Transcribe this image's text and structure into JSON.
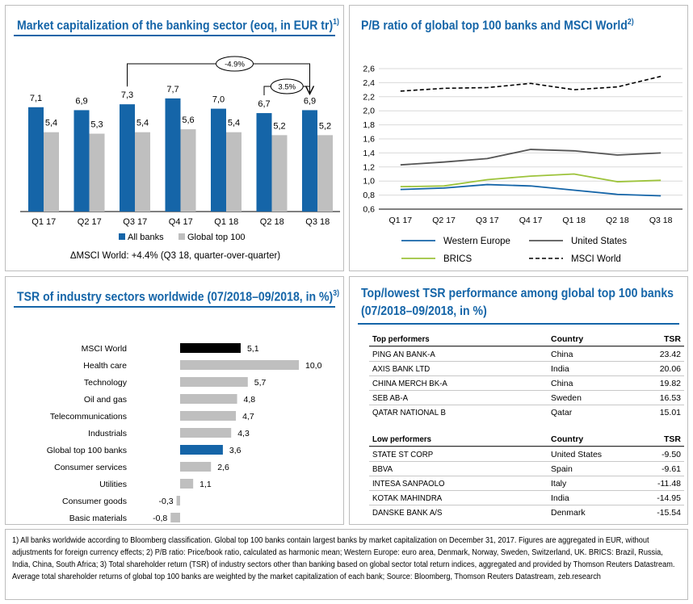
{
  "panel1": {
    "title": "Market capitalization of the banking sector (eoq, in EUR tr)",
    "title_sup": "1)",
    "note": "ΔMSCI World: +4.4% (Q3 18, quarter-over-quarter)",
    "annotation_long": "-4.9%",
    "annotation_short": "3.5%"
  },
  "panel2": {
    "title": "P/B ratio of global top 100 banks and MSCI World",
    "title_sup": "2)"
  },
  "panel3": {
    "title": "TSR of industry sectors worldwide (07/2018–09/2018, in %)",
    "title_sup": "3)"
  },
  "panel4": {
    "title_line1": "Top/lowest TSR performance among global top 100 banks",
    "title_line2": "(07/2018–09/2018, in %)",
    "top_header": [
      "Top performers",
      "Country",
      "TSR"
    ],
    "top_rows": [
      [
        "PING AN BANK-A",
        "China",
        "23.42"
      ],
      [
        "AXIS BANK LTD",
        "India",
        "20.06"
      ],
      [
        "CHINA MERCH BK-A",
        "China",
        "19.82"
      ],
      [
        "SEB AB-A",
        "Sweden",
        "16.53"
      ],
      [
        "QATAR NATIONAL B",
        "Qatar",
        "15.01"
      ]
    ],
    "low_header": [
      "Low performers",
      "Country",
      "TSR"
    ],
    "low_rows": [
      [
        "STATE ST CORP",
        "United States",
        "-9.50"
      ],
      [
        "BBVA",
        "Spain",
        "-9.61"
      ],
      [
        "INTESA SANPAOLO",
        "Italy",
        "-11.48"
      ],
      [
        "KOTAK MAHINDRA",
        "India",
        "-14.95"
      ],
      [
        "DANSKE BANK A/S",
        "Denmark",
        "-15.54"
      ]
    ]
  },
  "footnote": "1) All banks worldwide according to Bloomberg classification. Global top 100 banks contain largest banks by market capitalization on December 31, 2017. Figures are aggregated in EUR, without adjustments for foreign currency effects; 2) P/B ratio: Price/book ratio, calculated as harmonic mean; Western Europe: euro area, Denmark, Norway, Sweden, Switzerland, UK. BRICS: Brazil, Russia, India, China, South Africa; 3) Total shareholder return (TSR) of industry sectors other than banking based on global sector total return indices, aggregated and provided by Thomson Reuters Datastream. Average total shareholder returns of global top 100 banks are weighted by the market capitalization of each bank; Source: Bloomberg, Thomson Reuters Datastream, zeb.research",
  "colors": {
    "accent_blue": "#1565a8",
    "grey_bar": "#bfbfbf",
    "black": "#000000",
    "brics_green": "#9dc33b",
    "us_grey": "#555555"
  },
  "chart_data": [
    {
      "type": "bar",
      "categories": [
        "Q1 17",
        "Q2 17",
        "Q3 17",
        "Q4 17",
        "Q1 18",
        "Q2 18",
        "Q3 18"
      ],
      "series": [
        {
          "name": "All banks",
          "values": [
            7.1,
            6.9,
            7.3,
            7.7,
            7.0,
            6.7,
            6.9
          ],
          "labels": [
            "7,1",
            "6,9",
            "7,3",
            "7,7",
            "7,0",
            "6,7",
            "6,9"
          ]
        },
        {
          "name": "Global top 100",
          "values": [
            5.4,
            5.3,
            5.4,
            5.6,
            5.4,
            5.2,
            5.2
          ],
          "labels": [
            "5,4",
            "5,3",
            "5,4",
            "5,6",
            "5,4",
            "5,2",
            "5,2"
          ]
        }
      ],
      "legend": "bottom"
    },
    {
      "type": "line",
      "categories": [
        "Q1 17",
        "Q2 17",
        "Q3 17",
        "Q4 17",
        "Q1 18",
        "Q2 18",
        "Q3 18"
      ],
      "yticks": [
        "0,6",
        "0,8",
        "1,0",
        "1,2",
        "1,4",
        "1,6",
        "1,8",
        "2,0",
        "2,2",
        "2,4",
        "2,6"
      ],
      "ylim": [
        0.6,
        2.6
      ],
      "grid": true,
      "series": [
        {
          "name": "Western Europe",
          "values": [
            0.88,
            0.9,
            0.95,
            0.93,
            0.87,
            0.81,
            0.79
          ]
        },
        {
          "name": "United States",
          "values": [
            1.23,
            1.27,
            1.32,
            1.45,
            1.43,
            1.37,
            1.4
          ]
        },
        {
          "name": "BRICS",
          "values": [
            0.92,
            0.93,
            1.02,
            1.07,
            1.1,
            0.99,
            1.01
          ]
        },
        {
          "name": "MSCI World",
          "values": [
            2.28,
            2.32,
            2.33,
            2.39,
            2.3,
            2.34,
            2.49
          ]
        }
      ],
      "legend": "bottom"
    },
    {
      "type": "bar",
      "orientation": "horizontal",
      "categories": [
        "MSCI World",
        "Health care",
        "Technology",
        "Oil and gas",
        "Telecommunications",
        "Industrials",
        "Global top 100 banks",
        "Consumer services",
        "Utilities",
        "Consumer goods",
        "Basic materials"
      ],
      "values": [
        5.1,
        10.0,
        5.7,
        4.8,
        4.7,
        4.3,
        3.6,
        2.6,
        1.1,
        -0.3,
        -0.8
      ],
      "labels": [
        "5,1",
        "10,0",
        "5,7",
        "4,8",
        "4,7",
        "4,3",
        "3,6",
        "2,6",
        "1,1",
        "-0,3",
        "-0,8"
      ],
      "highlight": {
        "MSCI World": "black",
        "Global top 100 banks": "blue"
      }
    }
  ]
}
